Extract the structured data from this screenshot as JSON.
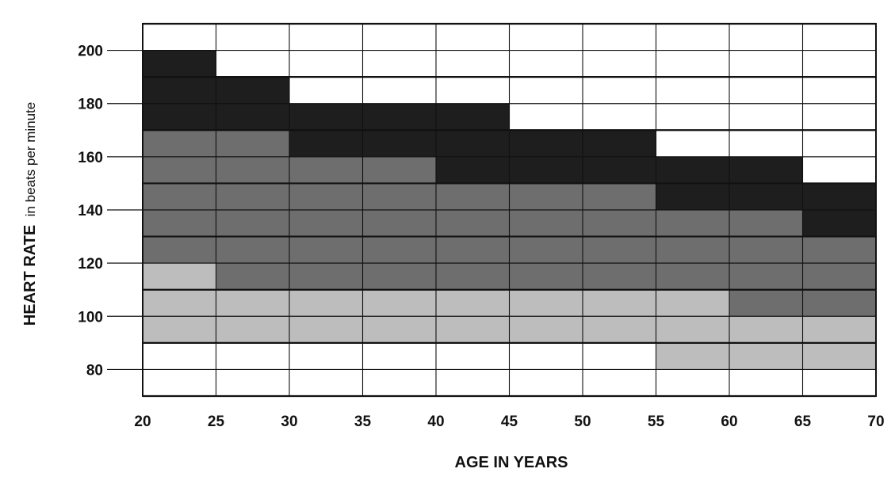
{
  "chart_data": {
    "type": "heatmap",
    "title": "",
    "xlabel": "AGE IN YEARS",
    "ylabel_main": "HEART RATE",
    "ylabel_unit": "in beats per minute",
    "x_ticks": [
      20,
      25,
      30,
      35,
      40,
      45,
      50,
      55,
      60,
      65,
      70
    ],
    "x_tick_labels": [
      "20",
      "25",
      "30",
      "35",
      "40",
      "45",
      "50",
      "55",
      "60",
      "65",
      "70"
    ],
    "y_ticks": [
      80,
      100,
      120,
      140,
      160,
      180,
      200
    ],
    "y_tick_labels": [
      "80",
      "100",
      "120",
      "140",
      "160",
      "180",
      "200"
    ],
    "xlim": [
      20,
      70
    ],
    "ylim": [
      70,
      210
    ],
    "grid": true,
    "grid_step_y": 10,
    "zone_colors": {
      "light": "#bdbdbd",
      "medium": "#6e6e6e",
      "dark": "#1e1e1e",
      "none": "#ffffff"
    },
    "zones": [
      {
        "x": [
          20,
          25
        ],
        "light": [
          90,
          120
        ],
        "medium": [
          120,
          170
        ],
        "dark": [
          170,
          200
        ]
      },
      {
        "x": [
          25,
          30
        ],
        "light": [
          90,
          110
        ],
        "medium": [
          110,
          170
        ],
        "dark": [
          170,
          190
        ]
      },
      {
        "x": [
          30,
          35
        ],
        "light": [
          90,
          110
        ],
        "medium": [
          110,
          160
        ],
        "dark": [
          160,
          180
        ]
      },
      {
        "x": [
          35,
          40
        ],
        "light": [
          90,
          110
        ],
        "medium": [
          110,
          160
        ],
        "dark": [
          160,
          180
        ]
      },
      {
        "x": [
          40,
          45
        ],
        "light": [
          90,
          110
        ],
        "medium": [
          110,
          150
        ],
        "dark": [
          150,
          180
        ]
      },
      {
        "x": [
          45,
          50
        ],
        "light": [
          90,
          110
        ],
        "medium": [
          110,
          150
        ],
        "dark": [
          150,
          170
        ]
      },
      {
        "x": [
          50,
          55
        ],
        "light": [
          90,
          110
        ],
        "medium": [
          110,
          150
        ],
        "dark": [
          150,
          170
        ]
      },
      {
        "x": [
          55,
          60
        ],
        "light": [
          80,
          110
        ],
        "medium": [
          110,
          140
        ],
        "dark": [
          140,
          160
        ]
      },
      {
        "x": [
          60,
          65
        ],
        "light": [
          80,
          100
        ],
        "medium": [
          100,
          140
        ],
        "dark": [
          140,
          160
        ]
      },
      {
        "x": [
          65,
          70
        ],
        "light": [
          80,
          100
        ],
        "medium": [
          100,
          130
        ],
        "dark": [
          130,
          150
        ]
      }
    ]
  }
}
